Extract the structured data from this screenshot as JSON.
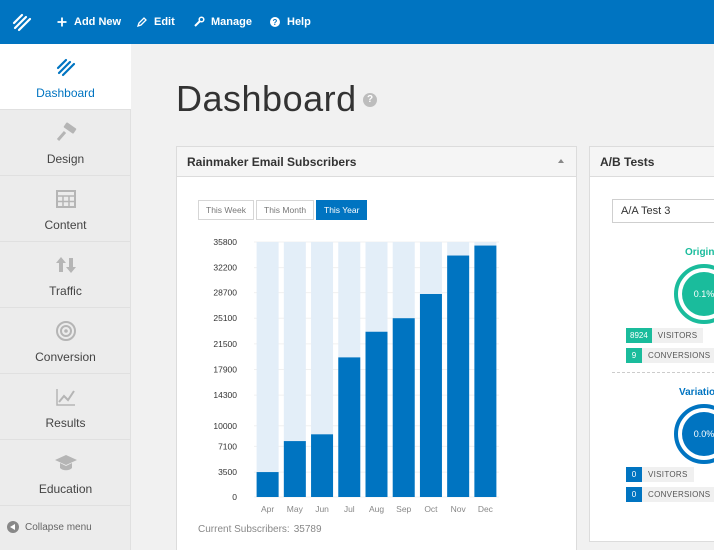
{
  "topbar": {
    "items": [
      {
        "label": "Add New",
        "icon": "plus-icon"
      },
      {
        "label": "Edit",
        "icon": "pencil-icon"
      },
      {
        "label": "Manage",
        "icon": "wrench-icon"
      },
      {
        "label": "Help",
        "icon": "question-icon"
      }
    ]
  },
  "sidebar": {
    "items": [
      {
        "label": "Dashboard",
        "icon": "rainmaker-logo-icon",
        "active": true
      },
      {
        "label": "Design",
        "icon": "paint-roller-icon"
      },
      {
        "label": "Content",
        "icon": "calendar-grid-icon"
      },
      {
        "label": "Traffic",
        "icon": "up-down-arrows-icon"
      },
      {
        "label": "Conversion",
        "icon": "target-icon"
      },
      {
        "label": "Results",
        "icon": "line-chart-icon"
      },
      {
        "label": "Education",
        "icon": "graduation-cap-icon"
      }
    ],
    "collapse_label": "Collapse menu"
  },
  "main": {
    "title": "Dashboard",
    "help_glyph": "?"
  },
  "email_panel": {
    "title": "Rainmaker Email Subscribers",
    "ranges": [
      "This Week",
      "This Month",
      "This Year"
    ],
    "active_range": "This Year",
    "current_label": "Current Subscribers:",
    "current_value": "35789"
  },
  "ab_panel": {
    "title": "A/B Tests",
    "selected_test": "A/A Test 3",
    "original": {
      "label": "Original",
      "rate": "0.1%",
      "visitors": "8924",
      "conversions": "9",
      "color": "#1abc9c"
    },
    "variation": {
      "label": "Variation",
      "rate": "0.0%",
      "visitors": "0",
      "conversions": "0",
      "color": "#0074c1"
    },
    "visitors_label": "VISITORS",
    "conversions_label": "CONVERSIONS"
  },
  "chart_data": {
    "type": "bar",
    "categories": [
      "Apr",
      "May",
      "Jun",
      "Jul",
      "Aug",
      "Sep",
      "Oct",
      "Nov",
      "Dec"
    ],
    "values": [
      3500,
      7850,
      8800,
      19600,
      23200,
      25100,
      28500,
      33900,
      35300
    ],
    "y_ticks": [
      0,
      3500,
      7100,
      10000,
      14300,
      17900,
      21500,
      25100,
      28700,
      32200,
      35800
    ],
    "ylim": [
      0,
      35800
    ],
    "bar_color": "#0074c1",
    "background_bar_color": "#e3eef8",
    "grid": true,
    "legend": "none"
  }
}
